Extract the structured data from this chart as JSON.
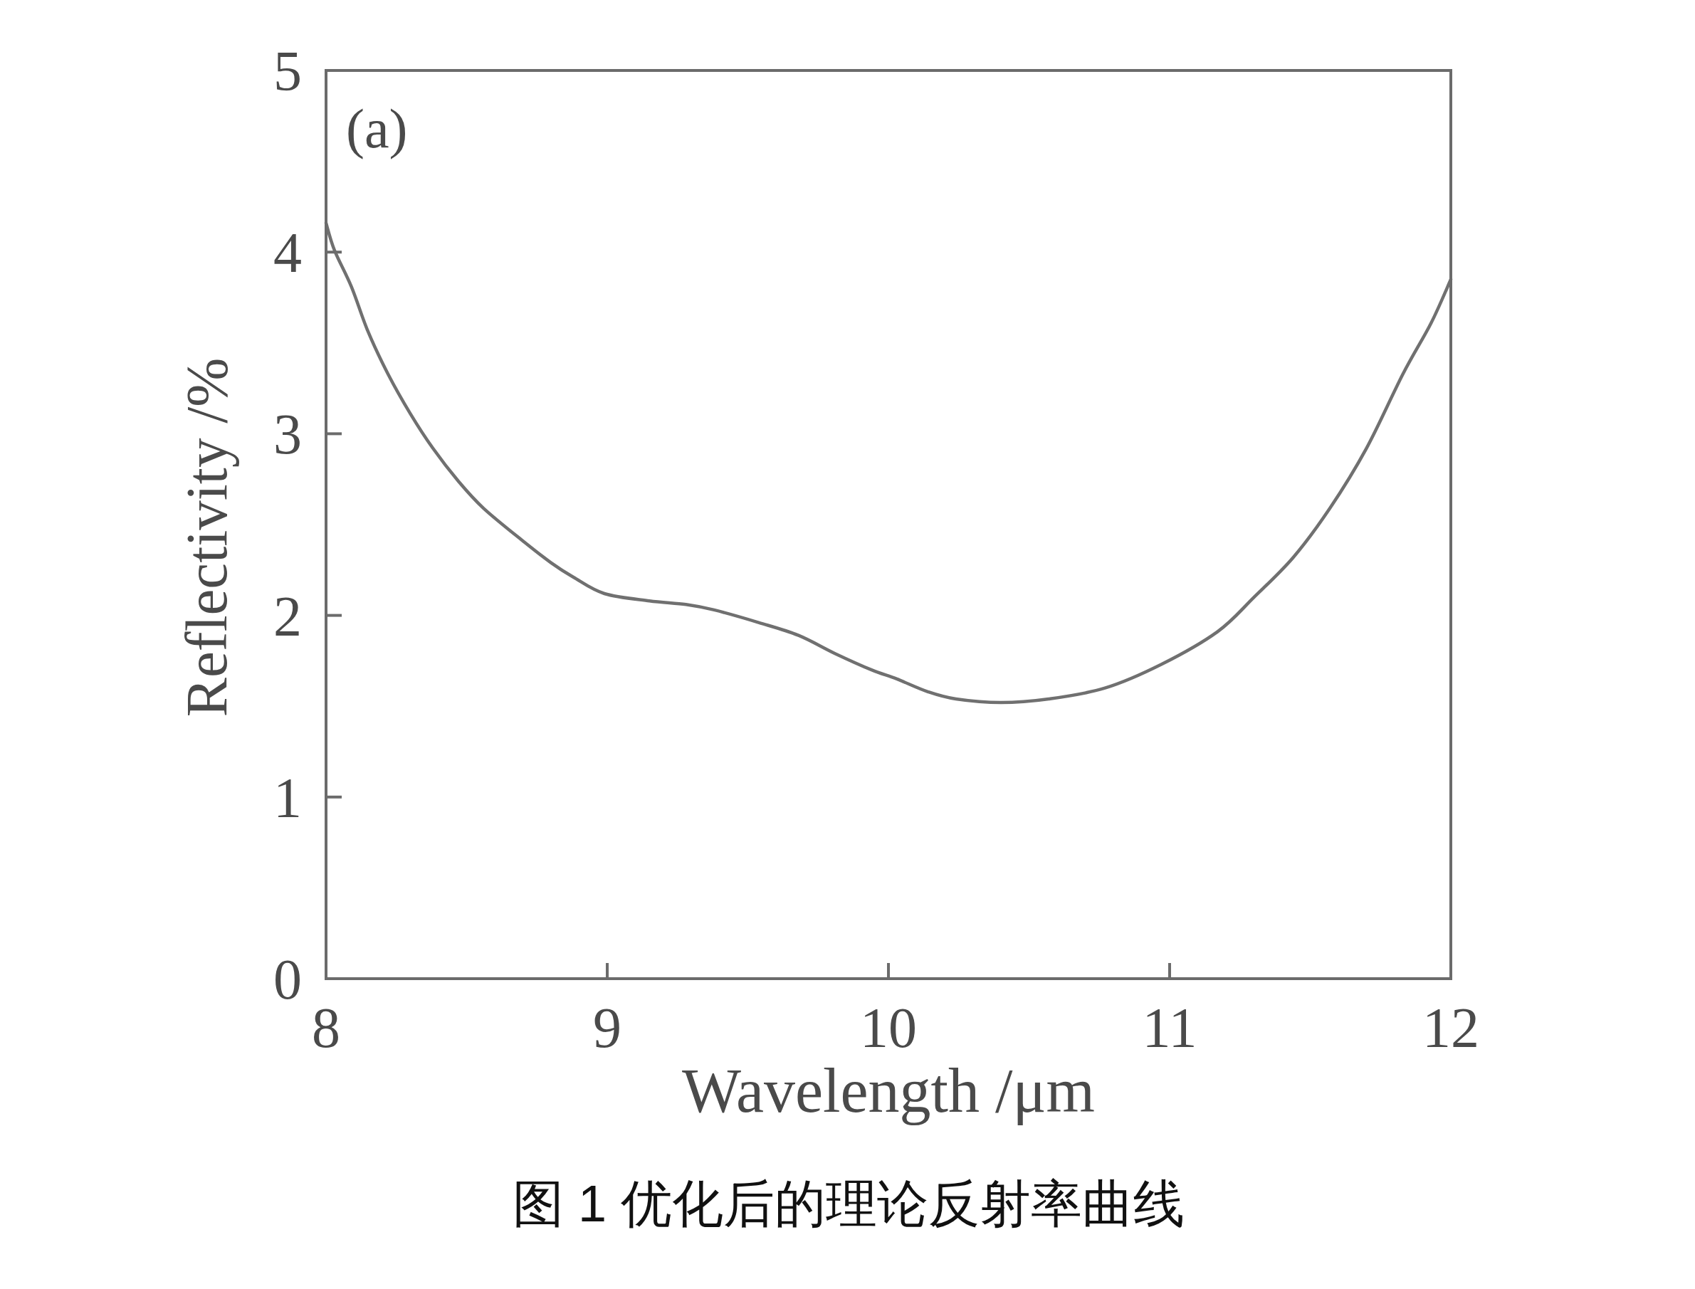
{
  "chart_data": {
    "type": "line",
    "title": "图 1 优化后的理论反射率曲线",
    "xlabel": "Wavelength /μm",
    "ylabel": "Reflectivity /%",
    "annotations": [
      "(a)"
    ],
    "x": [
      8.0,
      8.03,
      8.09,
      8.15,
      8.22,
      8.3,
      8.38,
      8.47,
      8.56,
      8.7,
      8.8,
      8.88,
      8.99,
      9.15,
      9.28,
      9.38,
      9.54,
      9.68,
      9.81,
      9.94,
      10.03,
      10.14,
      10.24,
      10.4,
      10.57,
      10.77,
      10.97,
      11.17,
      11.3,
      11.44,
      11.57,
      11.7,
      11.83,
      11.93,
      12.0
    ],
    "series": [
      {
        "color": "#707070",
        "values": [
          4.16,
          4.01,
          3.81,
          3.56,
          3.33,
          3.11,
          2.92,
          2.74,
          2.59,
          2.41,
          2.29,
          2.21,
          2.12,
          2.08,
          2.06,
          2.03,
          1.96,
          1.89,
          1.79,
          1.7,
          1.65,
          1.58,
          1.54,
          1.52,
          1.54,
          1.6,
          1.73,
          1.91,
          2.1,
          2.32,
          2.59,
          2.92,
          3.33,
          3.61,
          3.85
        ]
      }
    ],
    "xlim": [
      8,
      12
    ],
    "ylim": [
      0,
      5
    ],
    "xticks": [
      8,
      9,
      10,
      11,
      12
    ],
    "yticks": [
      0,
      1,
      2,
      3,
      4,
      5
    ]
  }
}
